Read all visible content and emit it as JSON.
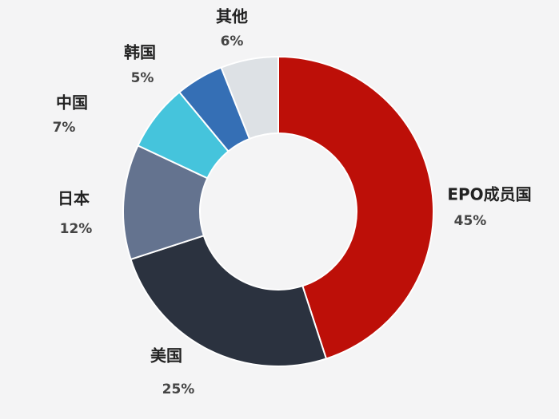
{
  "chart_data": {
    "type": "donut",
    "categories": [
      "EPO成员国",
      "美国",
      "日本",
      "中国",
      "韩国",
      "其他"
    ],
    "values": [
      45,
      25,
      12,
      7,
      5,
      6
    ],
    "value_labels": [
      "45%",
      "25%",
      "12%",
      "7%",
      "5%",
      "6%"
    ],
    "colors": [
      "#bd0f08",
      "#2b323f",
      "#64738f",
      "#45c4dc",
      "#356fb5",
      "#dde1e5"
    ]
  }
}
